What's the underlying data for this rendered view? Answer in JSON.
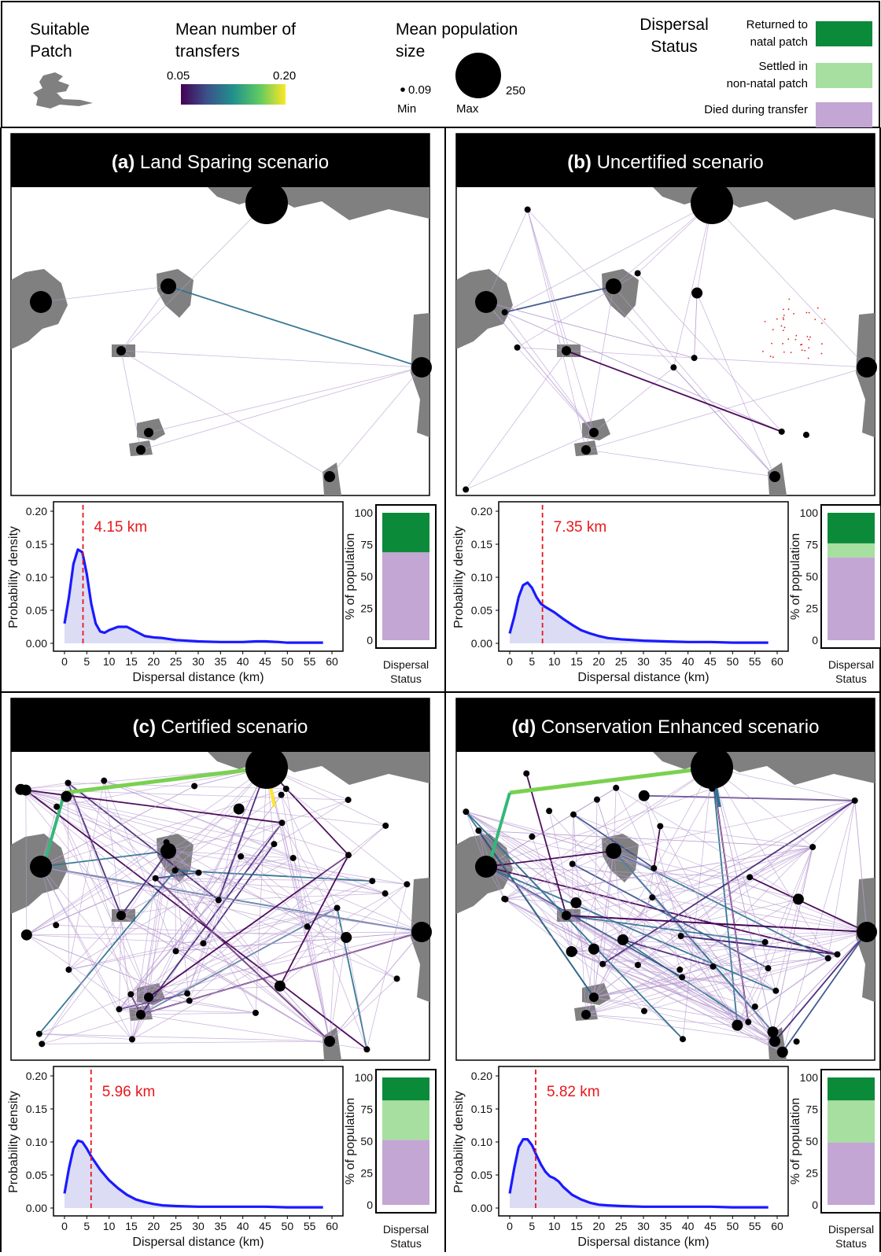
{
  "legend": {
    "patch_title": [
      "Suitable",
      "Patch"
    ],
    "transfers_title": [
      "Mean number of",
      "transfers"
    ],
    "transfers_min": "0.05",
    "transfers_max": "0.20",
    "pop_title": [
      "Mean population",
      "size"
    ],
    "pop_min_value": "0.09",
    "pop_min_label": "Min",
    "pop_max_value": "250",
    "pop_max_label": "Max",
    "status_title": [
      "Dispersal",
      "Status"
    ],
    "status_items": [
      {
        "label": [
          "Returned to",
          "natal patch"
        ],
        "color": "#0b8a3a"
      },
      {
        "label": [
          "Settled in",
          "non-natal patch"
        ],
        "color": "#a6dfa0"
      },
      {
        "label": [
          "Died during transfer"
        ],
        "color": "#c3a6d4"
      }
    ]
  },
  "colors": {
    "density_line": "#1a1aff",
    "density_fill": "#dcdcf5",
    "median_line": "#e8171b",
    "patch": "#808080"
  },
  "chart_data": [
    {
      "type": "line",
      "panel_tag": "(a)",
      "panel_title": "Land Sparing scenario",
      "median_label": "4.15 km",
      "median": 4.15,
      "xlabel": "Dispersal distance (km)",
      "ylabel": "Probability density",
      "xlim": [
        0,
        60
      ],
      "ylim": [
        0,
        0.2
      ],
      "xticks": [
        "0",
        "5",
        "10",
        "15",
        "20",
        "25",
        "30",
        "35",
        "40",
        "45",
        "50",
        "55",
        "60"
      ],
      "yticks": [
        "0.00",
        "0.05",
        "0.10",
        "0.15",
        "0.20"
      ],
      "x": [
        0,
        1,
        2,
        3,
        4,
        5,
        6,
        7,
        8,
        9,
        10,
        12,
        14,
        16,
        18,
        20,
        22,
        25,
        30,
        35,
        40,
        43,
        45,
        48,
        50,
        55,
        58
      ],
      "y": [
        0.03,
        0.07,
        0.12,
        0.142,
        0.138,
        0.105,
        0.06,
        0.03,
        0.018,
        0.016,
        0.02,
        0.025,
        0.025,
        0.018,
        0.011,
        0.009,
        0.008,
        0.005,
        0.003,
        0.002,
        0.002,
        0.003,
        0.003,
        0.002,
        0.001,
        0.001,
        0.001
      ],
      "status_bar": {
        "xlabel": [
          "Dispersal",
          "Status"
        ],
        "ylabel": "% of population",
        "yticks": [
          "0",
          "25",
          "50",
          "75",
          "100"
        ],
        "died": 69,
        "settled": 0,
        "returned": 31
      }
    },
    {
      "type": "line",
      "panel_tag": "(b)",
      "panel_title": "Uncertified scenario",
      "median_label": "7.35 km",
      "median": 7.35,
      "xlabel": "Dispersal distance (km)",
      "ylabel": "Probability density",
      "xlim": [
        0,
        60
      ],
      "ylim": [
        0,
        0.2
      ],
      "xticks": [
        "0",
        "5",
        "10",
        "15",
        "20",
        "25",
        "30",
        "35",
        "40",
        "45",
        "50",
        "55",
        "60"
      ],
      "yticks": [
        "0.00",
        "0.05",
        "0.10",
        "0.15",
        "0.20"
      ],
      "x": [
        0,
        1,
        2,
        3,
        4,
        5,
        6,
        7,
        8,
        10,
        12,
        14,
        16,
        18,
        20,
        22,
        25,
        30,
        35,
        40,
        45,
        50,
        55,
        58
      ],
      "y": [
        0.015,
        0.04,
        0.07,
        0.088,
        0.092,
        0.084,
        0.07,
        0.06,
        0.055,
        0.047,
        0.037,
        0.028,
        0.02,
        0.015,
        0.011,
        0.008,
        0.006,
        0.004,
        0.003,
        0.002,
        0.002,
        0.001,
        0.001,
        0.001
      ],
      "status_bar": {
        "xlabel": [
          "Dispersal",
          "Status"
        ],
        "ylabel": "% of population",
        "yticks": [
          "0",
          "25",
          "50",
          "75",
          "100"
        ],
        "died": 65,
        "settled": 11,
        "returned": 24
      }
    },
    {
      "type": "line",
      "panel_tag": "(c)",
      "panel_title": "Certified scenario",
      "median_label": "5.96 km",
      "median": 5.96,
      "xlabel": "Dispersal distance (km)",
      "ylabel": "Probability density",
      "xlim": [
        0,
        60
      ],
      "ylim": [
        0,
        0.2
      ],
      "xticks": [
        "0",
        "5",
        "10",
        "15",
        "20",
        "25",
        "30",
        "35",
        "40",
        "45",
        "50",
        "55",
        "60"
      ],
      "yticks": [
        "0.00",
        "0.05",
        "0.10",
        "0.15",
        "0.20"
      ],
      "x": [
        0,
        1,
        2,
        3,
        4,
        5,
        6,
        7,
        8,
        10,
        12,
        14,
        16,
        18,
        20,
        22,
        25,
        30,
        35,
        40,
        45,
        50,
        55,
        58
      ],
      "y": [
        0.022,
        0.06,
        0.09,
        0.102,
        0.1,
        0.09,
        0.078,
        0.068,
        0.058,
        0.042,
        0.03,
        0.02,
        0.013,
        0.009,
        0.006,
        0.004,
        0.003,
        0.002,
        0.002,
        0.002,
        0.002,
        0.001,
        0.001,
        0.001
      ],
      "status_bar": {
        "xlabel": [
          "Dispersal",
          "Status"
        ],
        "ylabel": "% of population",
        "yticks": [
          "0",
          "25",
          "50",
          "75",
          "100"
        ],
        "died": 51,
        "settled": 31,
        "returned": 18
      }
    },
    {
      "type": "line",
      "panel_tag": "(d)",
      "panel_title": "Conservation Enhanced scenario",
      "median_label": "5.82 km",
      "median": 5.82,
      "xlabel": "Dispersal distance (km)",
      "ylabel": "Probability density",
      "xlim": [
        0,
        60
      ],
      "ylim": [
        0,
        0.2
      ],
      "xticks": [
        "0",
        "5",
        "10",
        "15",
        "20",
        "25",
        "30",
        "35",
        "40",
        "45",
        "50",
        "55",
        "60"
      ],
      "yticks": [
        "0.00",
        "0.05",
        "0.10",
        "0.15",
        "0.20"
      ],
      "x": [
        0,
        1,
        2,
        3,
        4,
        5,
        6,
        7,
        8,
        9,
        10,
        11,
        12,
        14,
        16,
        18,
        20,
        22,
        25,
        30,
        35,
        40,
        45,
        50,
        55,
        58
      ],
      "y": [
        0.022,
        0.06,
        0.092,
        0.104,
        0.104,
        0.095,
        0.08,
        0.066,
        0.055,
        0.048,
        0.045,
        0.04,
        0.032,
        0.02,
        0.013,
        0.008,
        0.005,
        0.004,
        0.003,
        0.002,
        0.002,
        0.002,
        0.002,
        0.001,
        0.001,
        0.001
      ],
      "status_bar": {
        "xlabel": [
          "Dispersal",
          "Status"
        ],
        "ylabel": "% of population",
        "yticks": [
          "0",
          "25",
          "50",
          "75",
          "100"
        ],
        "died": 49,
        "settled": 33,
        "returned": 18
      }
    }
  ]
}
